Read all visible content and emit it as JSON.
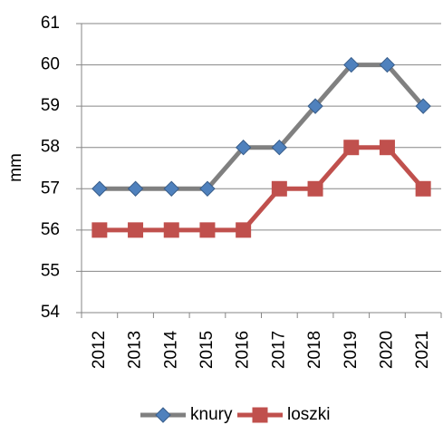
{
  "chart_data": {
    "type": "line",
    "ylabel": "mm",
    "categories": [
      "2012",
      "2013",
      "2014",
      "2015",
      "2016",
      "2017",
      "2018",
      "2019",
      "2020",
      "2021"
    ],
    "series": [
      {
        "name": "knury",
        "color": "#808080",
        "marker_color": "#4f81bd",
        "marker": "diamond",
        "values": [
          57,
          57,
          57,
          57,
          58,
          58,
          59,
          60,
          60,
          59
        ]
      },
      {
        "name": "loszki",
        "color": "#c0504d",
        "marker_color": "#c0504d",
        "marker": "square",
        "values": [
          56,
          56,
          56,
          56,
          56,
          57,
          57,
          58,
          58,
          57
        ]
      }
    ],
    "ylim": [
      54,
      61
    ],
    "yticks": [
      54,
      55,
      56,
      57,
      58,
      59,
      60,
      61
    ],
    "grid": true,
    "legend": "bottom"
  }
}
